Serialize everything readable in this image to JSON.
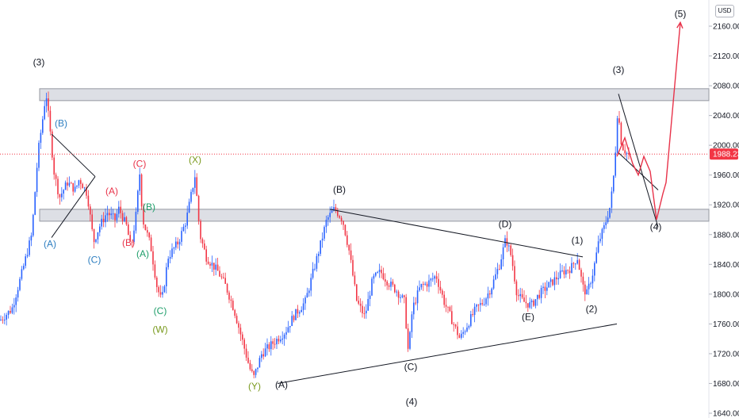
{
  "currency": "USD",
  "chart_data": {
    "type": "candlestick",
    "title": "",
    "ylim": [
      1640,
      2180
    ],
    "y_ticks": [
      "2160.00",
      "2120.00",
      "2080.00",
      "2040.00",
      "2000.00",
      "1960.00",
      "1920.00",
      "1880.00",
      "1840.00",
      "1800.00",
      "1760.00",
      "1720.00",
      "1680.00",
      "1640.00"
    ],
    "last_price": "1988.23",
    "colors": {
      "up": "#2962ff",
      "down": "#f23645",
      "zone": "#d1d4dc",
      "projection": "#e8334a",
      "line": "#131722"
    },
    "price_path": [
      [
        0,
        1765
      ],
      [
        15,
        1780
      ],
      [
        28,
        1830
      ],
      [
        40,
        1880
      ],
      [
        48,
        1990
      ],
      [
        55,
        2045
      ],
      [
        58,
        2072
      ],
      [
        63,
        2020
      ],
      [
        68,
        1965
      ],
      [
        75,
        1930
      ],
      [
        85,
        1950
      ],
      [
        95,
        1940
      ],
      [
        100,
        1955
      ],
      [
        110,
        1935
      ],
      [
        118,
        1870
      ],
      [
        125,
        1890
      ],
      [
        135,
        1910
      ],
      [
        145,
        1900
      ],
      [
        150,
        1915
      ],
      [
        160,
        1890
      ],
      [
        165,
        1860
      ],
      [
        172,
        1910
      ],
      [
        176,
        1965
      ],
      [
        180,
        1900
      ],
      [
        190,
        1865
      ],
      [
        198,
        1810
      ],
      [
        204,
        1790
      ],
      [
        212,
        1850
      ],
      [
        225,
        1870
      ],
      [
        235,
        1900
      ],
      [
        246,
        1960
      ],
      [
        252,
        1880
      ],
      [
        260,
        1850
      ],
      [
        275,
        1830
      ],
      [
        285,
        1810
      ],
      [
        295,
        1780
      ],
      [
        305,
        1740
      ],
      [
        315,
        1700
      ],
      [
        320,
        1688
      ],
      [
        330,
        1720
      ],
      [
        345,
        1735
      ],
      [
        360,
        1750
      ],
      [
        370,
        1770
      ],
      [
        385,
        1790
      ],
      [
        395,
        1830
      ],
      [
        405,
        1870
      ],
      [
        412,
        1900
      ],
      [
        422,
        1915
      ],
      [
        432,
        1900
      ],
      [
        440,
        1860
      ],
      [
        450,
        1790
      ],
      [
        460,
        1770
      ],
      [
        470,
        1820
      ],
      [
        480,
        1830
      ],
      [
        490,
        1815
      ],
      [
        500,
        1805
      ],
      [
        510,
        1790
      ],
      [
        515,
        1720
      ],
      [
        520,
        1780
      ],
      [
        530,
        1810
      ],
      [
        540,
        1815
      ],
      [
        550,
        1825
      ],
      [
        560,
        1790
      ],
      [
        570,
        1765
      ],
      [
        580,
        1740
      ],
      [
        590,
        1760
      ],
      [
        600,
        1780
      ],
      [
        610,
        1790
      ],
      [
        620,
        1810
      ],
      [
        630,
        1840
      ],
      [
        638,
        1875
      ],
      [
        645,
        1850
      ],
      [
        652,
        1800
      ],
      [
        660,
        1790
      ],
      [
        670,
        1785
      ],
      [
        680,
        1800
      ],
      [
        690,
        1810
      ],
      [
        700,
        1820
      ],
      [
        710,
        1830
      ],
      [
        720,
        1835
      ],
      [
        728,
        1850
      ],
      [
        735,
        1810
      ],
      [
        740,
        1800
      ],
      [
        748,
        1830
      ],
      [
        755,
        1870
      ],
      [
        762,
        1890
      ],
      [
        770,
        1920
      ],
      [
        775,
        1970
      ],
      [
        779,
        2050
      ],
      [
        784,
        2000
      ],
      [
        790,
        1990
      ],
      [
        795,
        1985
      ]
    ],
    "zones": [
      {
        "y0": 2060,
        "y1": 2076
      },
      {
        "y0": 1898,
        "y1": 1914
      }
    ],
    "trend_lines": [
      {
        "points": [
          [
            416,
            1914
          ],
          [
            735,
            1850
          ]
        ]
      },
      {
        "points": [
          [
            350,
            1680
          ],
          [
            778,
            1760
          ]
        ]
      },
      {
        "points": [
          [
            65,
            2015
          ],
          [
            120,
            1958
          ]
        ]
      },
      {
        "points": [
          [
            65,
            1876
          ],
          [
            120,
            1958
          ]
        ]
      },
      {
        "points": [
          [
            780,
            2069
          ],
          [
            830,
            1890
          ]
        ]
      },
      {
        "points": [
          [
            780,
            1990
          ],
          [
            830,
            1940
          ]
        ]
      }
    ],
    "projection_path": [
      [
        778,
        1985
      ],
      [
        788,
        2010
      ],
      [
        798,
        1975
      ],
      [
        805,
        1960
      ],
      [
        812,
        1985
      ],
      [
        820,
        1965
      ],
      [
        828,
        1900
      ],
      [
        836,
        1935
      ],
      [
        840,
        1950
      ],
      [
        858,
        2165
      ]
    ],
    "wave_labels": [
      {
        "text": "(3)",
        "x": 49,
        "y": 2107,
        "color": "#131722"
      },
      {
        "text": "(B)",
        "x": 77,
        "y": 2025,
        "color": "#2f7fc1"
      },
      {
        "text": "(A)",
        "x": 63,
        "y": 1863,
        "color": "#2f7fc1"
      },
      {
        "text": "(C)",
        "x": 119,
        "y": 1842,
        "color": "#2f7fc1"
      },
      {
        "text": "(C)",
        "x": 176,
        "y": 1971,
        "color": "#e8334a"
      },
      {
        "text": "(A)",
        "x": 141,
        "y": 1934,
        "color": "#e8334a"
      },
      {
        "text": "(B)",
        "x": 162,
        "y": 1865,
        "color": "#e8334a"
      },
      {
        "text": "(B)",
        "x": 188,
        "y": 1913,
        "color": "#1e9e6a"
      },
      {
        "text": "(A)",
        "x": 180,
        "y": 1850,
        "color": "#1e9e6a"
      },
      {
        "text": "(C)",
        "x": 202,
        "y": 1773,
        "color": "#1e9e6a"
      },
      {
        "text": "(W)",
        "x": 202,
        "y": 1748,
        "color": "#7a9a1e"
      },
      {
        "text": "(X)",
        "x": 246,
        "y": 1976,
        "color": "#7a9a1e"
      },
      {
        "text": "(Y)",
        "x": 321,
        "y": 1672,
        "color": "#7a9a1e"
      },
      {
        "text": "(A)",
        "x": 355,
        "y": 1674,
        "color": "#131722"
      },
      {
        "text": "(B)",
        "x": 428,
        "y": 1936,
        "color": "#131722"
      },
      {
        "text": "(C)",
        "x": 518,
        "y": 1698,
        "color": "#131722"
      },
      {
        "text": "(4)",
        "x": 519,
        "y": 1651,
        "color": "#131722"
      },
      {
        "text": "(D)",
        "x": 637,
        "y": 1890,
        "color": "#131722"
      },
      {
        "text": "(E)",
        "x": 666,
        "y": 1765,
        "color": "#131722"
      },
      {
        "text": "(1)",
        "x": 728,
        "y": 1868,
        "color": "#131722"
      },
      {
        "text": "(2)",
        "x": 746,
        "y": 1776,
        "color": "#131722"
      },
      {
        "text": "(3)",
        "x": 780,
        "y": 2097,
        "color": "#131722"
      },
      {
        "text": "(4)",
        "x": 827,
        "y": 1886,
        "color": "#131722"
      },
      {
        "text": "(5)",
        "x": 858,
        "y": 2172,
        "color": "#131722"
      }
    ]
  }
}
